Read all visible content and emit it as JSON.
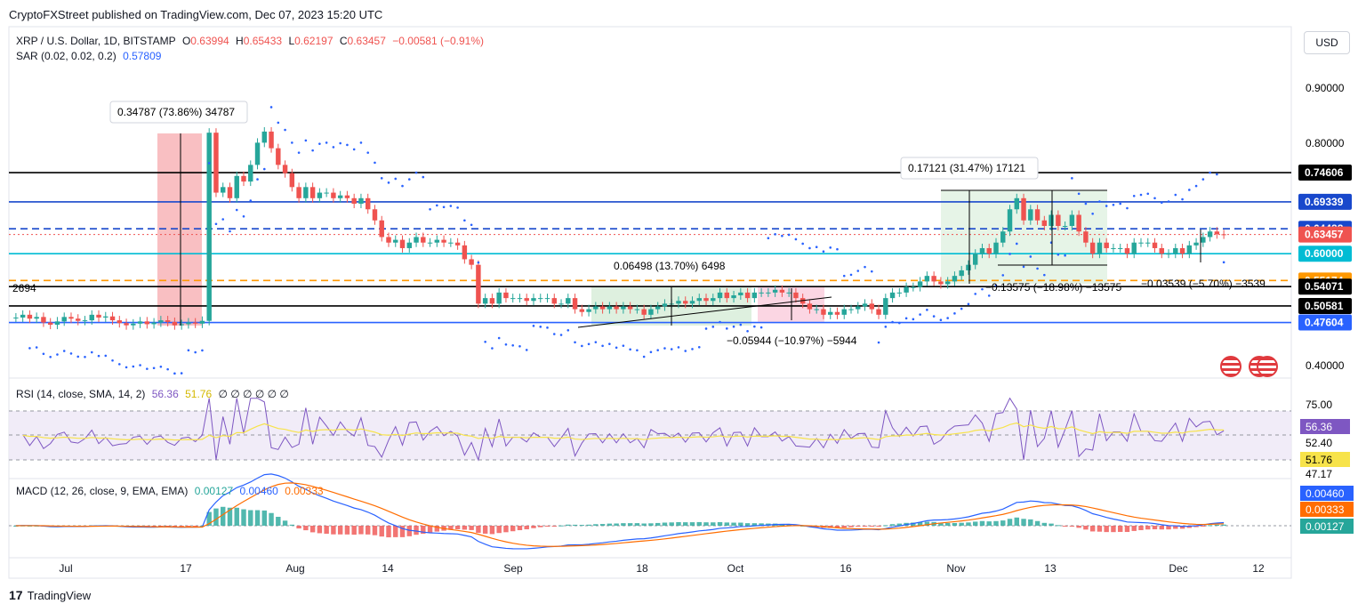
{
  "header": {
    "text": "CryptoFXStreet published on TradingView.com, Dec 07, 2023 15:20 UTC"
  },
  "legend": {
    "symbol": "XRP / U.S. Dollar, 1D, BITSTAMP",
    "o_label": "O",
    "o": "0.63994",
    "h_label": "H",
    "h": "0.65433",
    "l_label": "L",
    "l": "0.62197",
    "c_label": "C",
    "c": "0.63457",
    "change": "−0.00581 (−0.91%)",
    "sar_label": "SAR (0.02, 0.02, 0.2)",
    "sar": "0.57809",
    "rsi_label": "RSI (14, close, SMA, 14, 2)",
    "rsi": "56.36",
    "rsi_sma": "51.76",
    "rsi_zeros": "∅ ∅ ∅ ∅ ∅ ∅",
    "macd_label": "MACD (12, 26, close, 9, EMA, EMA)",
    "macd_hist": "0.00127",
    "macd_line": "0.00460",
    "macd_signal": "0.00333"
  },
  "usd_button": "USD",
  "logo": {
    "mark": "17",
    "text": "TradingView"
  },
  "colors": {
    "up": "#26a69a",
    "down": "#ef5350",
    "sar": "#2962ff",
    "rsi": "#7e57c2",
    "rsi_sma": "#f7e34a",
    "macd": "#2962ff",
    "signal": "#ff6d00",
    "blue_level": "#1848cc",
    "cyan_level": "#00bcd4",
    "orange_level": "#ff9800"
  },
  "chart_data": {
    "type": "candlestick",
    "price_axis": {
      "ticks": [
        "0.90000",
        "0.80000",
        "0.40000"
      ]
    },
    "x_ticks": [
      "Jul",
      "17",
      "Aug",
      "14",
      "Sep",
      "18",
      "Oct",
      "16",
      "Nov",
      "13",
      "Dec",
      "12"
    ],
    "levels": [
      {
        "value": "0.74606",
        "style": "solid",
        "color": "#000000"
      },
      {
        "value": "0.69339",
        "style": "solid",
        "color": "#1848cc"
      },
      {
        "value": "0.64488",
        "style": "dashed",
        "color": "#1848cc"
      },
      {
        "value": "0.63457",
        "style": "price",
        "color": "#ef5350"
      },
      {
        "value": "0.60000",
        "style": "solid",
        "color": "#00bcd4"
      },
      {
        "value": "0.55174",
        "style": "dashed",
        "color": "#ff9800"
      },
      {
        "value": "0.54071",
        "style": "solid",
        "color": "#000000"
      },
      {
        "value": "0.50581",
        "style": "solid",
        "color": "#000000"
      },
      {
        "value": "0.47604",
        "style": "solid",
        "color": "#2962ff"
      }
    ],
    "annotations": [
      "0.34787 (73.86%) 34787",
      "0.17121 (31.47%) 17121",
      "0.06498 (13.70%) 6498",
      "−0.05944 (−10.97%) −5944",
      "−0.13575 (−18.98%) −13575",
      "−0.03539 (−5.70%) −3539",
      "2694"
    ],
    "rsi_axis": {
      "ticks": [
        "75.00",
        "52.40",
        "47.17"
      ],
      "current": "56.36",
      "sma": "51.76"
    },
    "macd_axis": {
      "macd": "0.00460",
      "signal": "0.00333",
      "hist": "0.00127"
    },
    "closes": [
      0.485,
      0.49,
      0.483,
      0.486,
      0.476,
      0.472,
      0.478,
      0.486,
      0.483,
      0.479,
      0.48,
      0.49,
      0.485,
      0.487,
      0.48,
      0.475,
      0.471,
      0.474,
      0.478,
      0.473,
      0.476,
      0.48,
      0.477,
      0.471,
      0.473,
      0.476,
      0.474,
      0.479,
      0.818,
      0.71,
      0.72,
      0.7,
      0.74,
      0.73,
      0.76,
      0.8,
      0.82,
      0.79,
      0.76,
      0.745,
      0.72,
      0.7,
      0.72,
      0.7,
      0.71,
      0.71,
      0.7,
      0.705,
      0.7,
      0.69,
      0.7,
      0.68,
      0.66,
      0.63,
      0.62,
      0.625,
      0.61,
      0.62,
      0.63,
      0.62,
      0.62,
      0.625,
      0.62,
      0.62,
      0.615,
      0.59,
      0.58,
      0.51,
      0.52,
      0.51,
      0.53,
      0.52,
      0.52,
      0.52,
      0.515,
      0.52,
      0.52,
      0.52,
      0.51,
      0.51,
      0.52,
      0.5,
      0.495,
      0.5,
      0.505,
      0.5,
      0.505,
      0.5,
      0.505,
      0.5,
      0.5,
      0.49,
      0.5,
      0.505,
      0.51,
      0.51,
      0.515,
      0.51,
      0.515,
      0.52,
      0.515,
      0.52,
      0.53,
      0.52,
      0.525,
      0.53,
      0.52,
      0.53,
      0.53,
      0.53,
      0.535,
      0.53,
      0.53,
      0.52,
      0.51,
      0.5,
      0.5,
      0.49,
      0.495,
      0.49,
      0.5,
      0.5,
      0.505,
      0.51,
      0.5,
      0.49,
      0.52,
      0.53,
      0.53,
      0.54,
      0.54,
      0.55,
      0.56,
      0.55,
      0.545,
      0.55,
      0.56,
      0.57,
      0.58,
      0.6,
      0.61,
      0.6,
      0.62,
      0.64,
      0.68,
      0.7,
      0.66,
      0.68,
      0.66,
      0.65,
      0.67,
      0.65,
      0.65,
      0.67,
      0.64,
      0.62,
      0.6,
      0.62,
      0.61,
      0.61,
      0.61,
      0.6,
      0.62,
      0.62,
      0.62,
      0.61,
      0.6,
      0.6,
      0.61,
      0.6,
      0.615,
      0.62,
      0.63,
      0.64,
      0.635,
      0.63457
    ]
  }
}
